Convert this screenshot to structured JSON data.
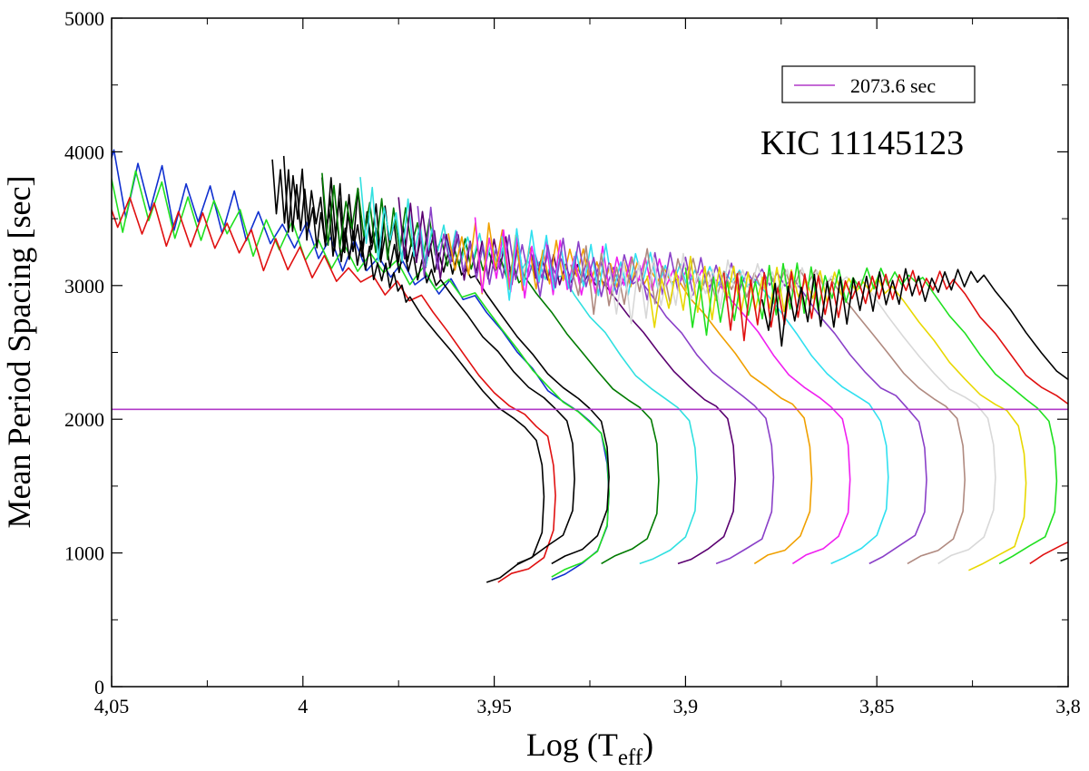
{
  "chart_data": {
    "type": "line",
    "title": "",
    "xlabel": "Log (T",
    "xlabel_subscript": "eff",
    "xlabel_suffix": ")",
    "ylabel": "Mean Period Spacing [sec]",
    "annotation": "KIC 11145123",
    "xlim": [
      4.05,
      3.8
    ],
    "ylim": [
      0,
      5000
    ],
    "x_reversed": true,
    "x_major_ticks": [
      4.05,
      4.0,
      3.95,
      3.9,
      3.85,
      3.8
    ],
    "x_tick_labels": [
      "4,05",
      "4",
      "3,95",
      "3,9",
      "3,85",
      "3,8"
    ],
    "x_minor_ticks": [
      4.025,
      3.975,
      3.925,
      3.875,
      3.825
    ],
    "y_major_ticks": [
      0,
      1000,
      2000,
      3000,
      4000,
      5000
    ],
    "y_tick_labels": [
      "0",
      "1000",
      "2000",
      "3000",
      "4000",
      "5000"
    ],
    "y_minor_ticks": [
      500,
      1500,
      2500,
      3500,
      4500
    ],
    "grid": false,
    "legend": {
      "position": "top-right",
      "entries": [
        {
          "label": "2073.6 sec",
          "color": "#b039c8"
        }
      ]
    },
    "reference_line": {
      "y": 2073.6,
      "color": "#b039c8",
      "label": "2073.6 sec"
    },
    "track_template": {
      "description": "Each evolutionary track: lower branch rises from its start point, turns near the minimum-temperature column, then climbs and joins the noisy upper band.",
      "lower_branch": [
        [
          0.0,
          800
        ],
        [
          -0.0035,
          850
        ],
        [
          -0.008,
          920
        ],
        [
          -0.012,
          1000
        ],
        [
          -0.0145,
          1200
        ],
        [
          -0.015,
          1450
        ],
        [
          -0.0145,
          1700
        ],
        [
          -0.013,
          1900
        ],
        [
          -0.01,
          2000
        ],
        [
          -0.007,
          2070
        ],
        [
          -0.003,
          2150
        ],
        [
          0.001,
          2250
        ],
        [
          0.005,
          2400
        ],
        [
          0.009,
          2550
        ],
        [
          0.013,
          2700
        ],
        [
          0.017,
          2850
        ],
        [
          0.02,
          2980
        ]
      ]
    },
    "series": [
      {
        "name": "track-1",
        "color": "#1030d0",
        "start_x": 3.935,
        "start_y": 800,
        "upper_x_from": 4.062,
        "upper_x_to": 3.955,
        "upper_y_from": 3900,
        "upper_y_to": 3000
      },
      {
        "name": "track-2",
        "color": "#20e020",
        "start_x": 3.935,
        "start_y": 820,
        "upper_x_from": 4.071,
        "upper_x_to": 3.95,
        "upper_y_from": 3850,
        "upper_y_to": 3000
      },
      {
        "name": "track-3",
        "color": "#e01010",
        "start_x": 3.949,
        "start_y": 780,
        "upper_x_from": 4.077,
        "upper_x_to": 3.944,
        "upper_y_from": 3800,
        "upper_y_to": 3050
      },
      {
        "name": "track-4",
        "color": "#000000",
        "start_x": 3.952,
        "start_y": 780,
        "upper_x_from": 4.008,
        "upper_x_to": 3.938,
        "upper_y_from": 3750,
        "upper_y_to": 3000
      },
      {
        "name": "track-5",
        "color": "#000000",
        "start_x": 3.944,
        "start_y": 920,
        "upper_x_from": 4.005,
        "upper_x_to": 3.93,
        "upper_y_from": 3700,
        "upper_y_to": 2950
      },
      {
        "name": "track-6",
        "color": "#000000",
        "start_x": 3.935,
        "start_y": 920,
        "upper_x_from": 3.995,
        "upper_x_to": 3.915,
        "upper_y_from": 3600,
        "upper_y_to": 2900
      },
      {
        "name": "track-7",
        "color": "#007a00",
        "start_x": 3.922,
        "start_y": 920,
        "upper_x_from": 3.995,
        "upper_x_to": 3.905,
        "upper_y_from": 3600,
        "upper_y_to": 2850
      },
      {
        "name": "track-8",
        "color": "#30e0e0",
        "start_x": 3.912,
        "start_y": 920,
        "upper_x_from": 3.985,
        "upper_x_to": 3.895,
        "upper_y_from": 3500,
        "upper_y_to": 2800
      },
      {
        "name": "track-9",
        "color": "#5a0070",
        "start_x": 3.902,
        "start_y": 920,
        "upper_x_from": 3.975,
        "upper_x_to": 3.885,
        "upper_y_from": 3350,
        "upper_y_to": 2750
      },
      {
        "name": "track-10",
        "color": "#8a40c8",
        "start_x": 3.892,
        "start_y": 920,
        "upper_x_from": 3.97,
        "upper_x_to": 3.875,
        "upper_y_from": 3300,
        "upper_y_to": 2700
      },
      {
        "name": "track-11",
        "color": "#f0a000",
        "start_x": 3.882,
        "start_y": 920,
        "upper_x_from": 3.962,
        "upper_x_to": 3.865,
        "upper_y_from": 3250,
        "upper_y_to": 2650
      },
      {
        "name": "track-12",
        "color": "#f020f0",
        "start_x": 3.872,
        "start_y": 920,
        "upper_x_from": 3.955,
        "upper_x_to": 3.86,
        "upper_y_from": 3200,
        "upper_y_to": 2600
      },
      {
        "name": "track-13",
        "color": "#30e0f0",
        "start_x": 3.862,
        "start_y": 920,
        "upper_x_from": 3.948,
        "upper_x_to": 3.855,
        "upper_y_from": 3150,
        "upper_y_to": 2550
      },
      {
        "name": "track-14",
        "color": "#8a40c8",
        "start_x": 3.852,
        "start_y": 920,
        "upper_x_from": 3.94,
        "upper_x_to": 3.85,
        "upper_y_from": 3100,
        "upper_y_to": 2500
      },
      {
        "name": "track-15",
        "color": "#b08a80",
        "start_x": 3.842,
        "start_y": 920,
        "upper_x_from": 3.93,
        "upper_x_to": 3.843,
        "upper_y_from": 3050,
        "upper_y_to": 2450
      },
      {
        "name": "track-16",
        "color": "#d8d8d8",
        "start_x": 3.834,
        "start_y": 920,
        "upper_x_from": 3.92,
        "upper_x_to": 3.838,
        "upper_y_from": 3000,
        "upper_y_to": 2400
      },
      {
        "name": "track-17",
        "color": "#e8d800",
        "start_x": 3.826,
        "start_y": 870,
        "upper_x_from": 3.91,
        "upper_x_to": 3.834,
        "upper_y_from": 2950,
        "upper_y_to": 2350
      },
      {
        "name": "track-18",
        "color": "#20e020",
        "start_x": 3.818,
        "start_y": 920,
        "upper_x_from": 3.9,
        "upper_x_to": 3.828,
        "upper_y_from": 2900,
        "upper_y_to": 2300
      },
      {
        "name": "track-19",
        "color": "#e01010",
        "start_x": 3.81,
        "start_y": 920,
        "upper_x_from": 3.89,
        "upper_x_to": 3.824,
        "upper_y_from": 2850,
        "upper_y_to": 2250
      },
      {
        "name": "track-20",
        "color": "#000000",
        "start_x": 3.802,
        "start_y": 940,
        "upper_x_from": 3.88,
        "upper_x_to": 3.82,
        "upper_y_from": 2800,
        "upper_y_to": 2200
      }
    ]
  }
}
